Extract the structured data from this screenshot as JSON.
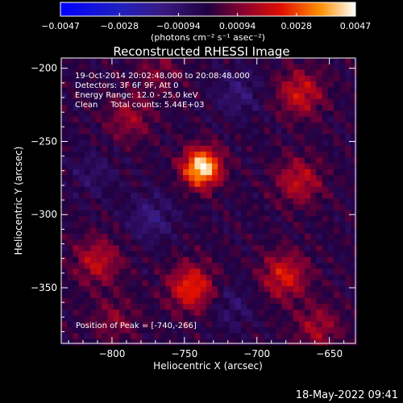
{
  "chart_data": {
    "type": "heatmap",
    "title": "Reconstructed RHESSI Image",
    "xlabel": "Heliocentric X (arcsec)",
    "ylabel": "Heliocentric Y (arcsec)",
    "xlim": [
      -835,
      -632
    ],
    "ylim": [
      -388,
      -193
    ],
    "x_ticks": [
      -800,
      -750,
      -700,
      -650
    ],
    "y_ticks": [
      -200,
      -250,
      -300,
      -350
    ],
    "x_tick_labels": [
      "−800",
      "−750",
      "−700",
      "−650"
    ],
    "y_tick_labels": [
      "−200",
      "−250",
      "−300",
      "−350"
    ],
    "colorbar": {
      "range": [
        -0.0047,
        0.0047
      ],
      "tick_labels": [
        "−0.0047",
        "−0.0028",
        "−0.00094",
        "0.00094",
        "0.0028",
        "0.0047"
      ],
      "unit_label": "(photons cm⁻² s⁻¹ asec⁻²)"
    },
    "annotations": [
      "19-Oct-2014 20:02:48.000 to 20:08:48.000",
      "Detectors: 3F 6F 9F, Att 0",
      "Energy Range: 12.0 - 25.0 keV",
      "Clean     Total counts: 5.44E+03"
    ],
    "peak_label": "Position of Peak = [-740,-266]",
    "peak": {
      "x": -740,
      "y": -266
    },
    "sources": [
      {
        "x": -740,
        "y": -266,
        "flux": 0.0047
      },
      {
        "x": -747,
        "y": -348,
        "flux": 0.0026
      },
      {
        "x": -683,
        "y": -340,
        "flux": 0.0022
      },
      {
        "x": -672,
        "y": -215,
        "flux": 0.002
      },
      {
        "x": -673,
        "y": -275,
        "flux": 0.0018
      },
      {
        "x": -812,
        "y": -330,
        "flux": 0.0018
      },
      {
        "x": -790,
        "y": -232,
        "flux": 0.0013
      },
      {
        "x": -660,
        "y": -375,
        "flux": 0.0014
      },
      {
        "x": -770,
        "y": -200,
        "flux": 0.0009
      },
      {
        "x": -800,
        "y": -370,
        "flux": 0.001
      }
    ],
    "negative_regions": [
      {
        "x": -775,
        "y": -300,
        "flux": -0.0012
      },
      {
        "x": -715,
        "y": -215,
        "flux": -0.001
      },
      {
        "x": -720,
        "y": -360,
        "flux": -0.0008
      },
      {
        "x": -815,
        "y": -270,
        "flux": -0.0007
      }
    ],
    "footer_timestamp": "18-May-2022 09:41"
  }
}
